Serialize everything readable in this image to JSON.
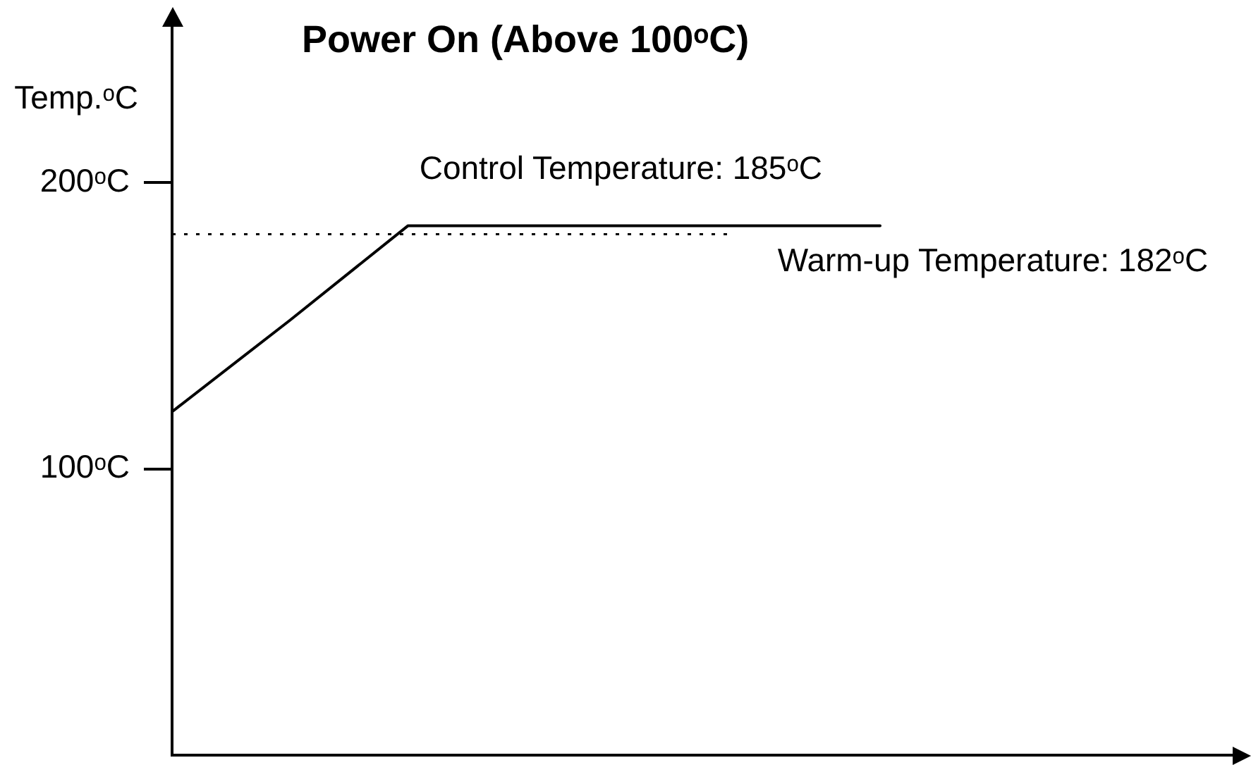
{
  "chart_data": {
    "type": "line",
    "title": "Power On (Above 100ᵒC)",
    "ylabel": "Temp.ᵒC",
    "categories": [
      null,
      null,
      null,
      null,
      null,
      null,
      null,
      null,
      null,
      null
    ],
    "series": [
      {
        "color": "#000000",
        "values": [
          120,
          152,
          185,
          185,
          185,
          185,
          185,
          null,
          null,
          null
        ]
      }
    ],
    "ylim": [
      0,
      255
    ],
    "yticks": [
      {
        "value": 100,
        "label": "100ᵒC"
      },
      {
        "value": 200,
        "label": "200ᵒC"
      }
    ],
    "tick_labels": "y",
    "ref_lines": [
      {
        "axis": "y",
        "value": 182,
        "label": "Warm-up Temperature: 182ᵒC",
        "color": "#000000",
        "line_style": "dotted"
      }
    ],
    "annotations": [
      {
        "text": "Control Temperature: 185ᵒC",
        "y": 185
      }
    ]
  }
}
